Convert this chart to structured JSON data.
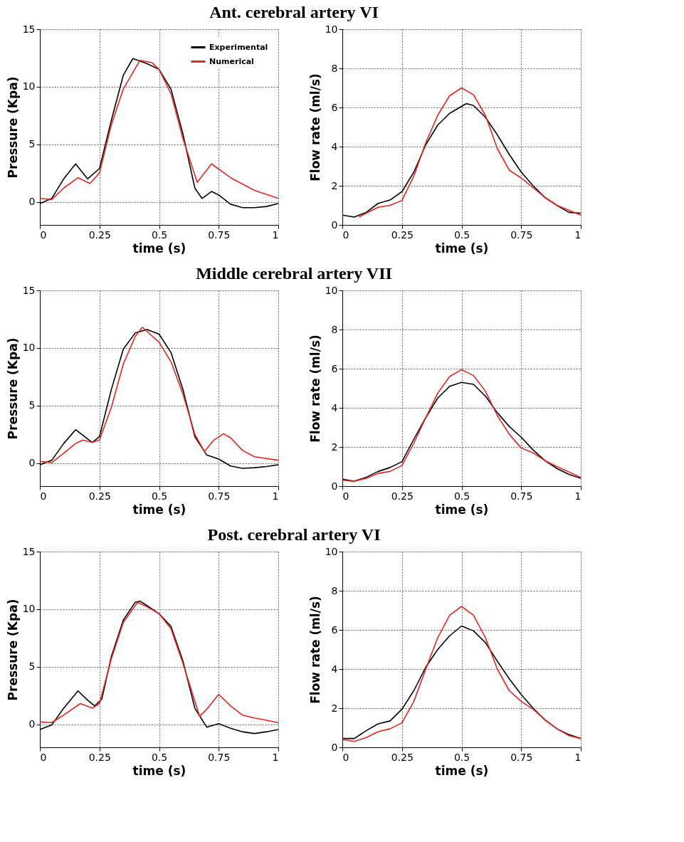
{
  "chart_data": [
    {
      "type": "line",
      "title": "Ant. cerebral artery VI",
      "xlabel": "time (s)",
      "ylabel": "Pressure (Kpa)",
      "xlim": [
        0,
        1
      ],
      "xticks": [
        0,
        0.25,
        0.5,
        0.75,
        1
      ],
      "ylim": [
        -2,
        15
      ],
      "yticks": [
        0,
        5,
        10,
        15
      ],
      "grid": true,
      "legend": "top right",
      "series": [
        {
          "name": "Experimental",
          "color": "#000000",
          "x": [
            0,
            0.05,
            0.1,
            0.15,
            0.2,
            0.25,
            0.3,
            0.35,
            0.39,
            0.45,
            0.5,
            0.55,
            0.6,
            0.65,
            0.68,
            0.72,
            0.75,
            0.8,
            0.85,
            0.9,
            0.95,
            1.0
          ],
          "values": [
            -0.15,
            0.3,
            2.0,
            3.3,
            2.0,
            2.9,
            7.1,
            11.0,
            12.45,
            12.0,
            11.5,
            9.8,
            5.9,
            1.2,
            0.3,
            0.9,
            0.6,
            -0.2,
            -0.5,
            -0.5,
            -0.4,
            -0.15
          ]
        },
        {
          "name": "Numerical",
          "color": "#e8261f",
          "x": [
            0,
            0.05,
            0.1,
            0.16,
            0.21,
            0.25,
            0.3,
            0.35,
            0.42,
            0.47,
            0.5,
            0.55,
            0.6,
            0.66,
            0.72,
            0.8,
            0.9,
            1.0
          ],
          "values": [
            0.3,
            0.2,
            1.2,
            2.1,
            1.6,
            2.5,
            6.7,
            9.8,
            12.3,
            12.1,
            11.5,
            9.4,
            5.5,
            1.7,
            3.3,
            2.1,
            1.0,
            0.3
          ]
        }
      ]
    },
    {
      "type": "line",
      "xlabel": "time (s)",
      "ylabel": "Flow rate (ml/s)",
      "xlim": [
        0,
        1
      ],
      "xticks": [
        0,
        0.25,
        0.5,
        0.75,
        1
      ],
      "ylim": [
        0,
        10
      ],
      "yticks": [
        0,
        2,
        4,
        6,
        8,
        10
      ],
      "grid": true,
      "series": [
        {
          "color": "#000000",
          "x": [
            0,
            0.05,
            0.1,
            0.15,
            0.2,
            0.25,
            0.3,
            0.35,
            0.4,
            0.45,
            0.52,
            0.55,
            0.6,
            0.65,
            0.7,
            0.75,
            0.8,
            0.85,
            0.9,
            0.95,
            1.0
          ],
          "values": [
            0.5,
            0.4,
            0.64,
            1.1,
            1.27,
            1.7,
            2.7,
            4.1,
            5.1,
            5.7,
            6.2,
            6.1,
            5.5,
            4.6,
            3.6,
            2.7,
            2.0,
            1.4,
            1.0,
            0.64,
            0.6
          ]
        },
        {
          "color": "#e8261f",
          "x": [
            0.07,
            0.1,
            0.15,
            0.2,
            0.25,
            0.3,
            0.35,
            0.4,
            0.45,
            0.5,
            0.55,
            0.6,
            0.65,
            0.7,
            0.75,
            0.8,
            0.85,
            0.9,
            1.0
          ],
          "values": [
            0.4,
            0.6,
            0.9,
            1.0,
            1.25,
            2.5,
            4.2,
            5.6,
            6.6,
            7.0,
            6.65,
            5.6,
            3.9,
            2.8,
            2.4,
            1.9,
            1.4,
            1.0,
            0.5
          ]
        }
      ]
    },
    {
      "type": "line",
      "title": "Middle cerebral artery VII",
      "xlabel": "time (s)",
      "ylabel": "Pressure (Kpa)",
      "xlim": [
        0,
        1
      ],
      "xticks": [
        0,
        0.25,
        0.5,
        0.75,
        1
      ],
      "ylim": [
        -2,
        15
      ],
      "yticks": [
        0,
        5,
        10,
        15
      ],
      "grid": true,
      "series": [
        {
          "color": "#000000",
          "x": [
            0,
            0.05,
            0.1,
            0.15,
            0.2,
            0.22,
            0.25,
            0.3,
            0.35,
            0.4,
            0.45,
            0.5,
            0.55,
            0.6,
            0.65,
            0.7,
            0.75,
            0.8,
            0.85,
            0.9,
            0.95,
            1.0
          ],
          "values": [
            -0.15,
            0.25,
            1.7,
            2.9,
            2.1,
            1.8,
            2.3,
            6.4,
            9.9,
            11.3,
            11.6,
            11.2,
            9.6,
            6.4,
            2.3,
            0.7,
            0.35,
            -0.25,
            -0.45,
            -0.4,
            -0.3,
            -0.15
          ]
        },
        {
          "color": "#e8261f",
          "x": [
            0,
            0.05,
            0.1,
            0.15,
            0.18,
            0.22,
            0.25,
            0.3,
            0.35,
            0.4,
            0.43,
            0.5,
            0.55,
            0.6,
            0.65,
            0.69,
            0.73,
            0.77,
            0.8,
            0.85,
            0.9,
            1.0
          ],
          "values": [
            0.15,
            0.05,
            0.85,
            1.7,
            2.0,
            1.8,
            2.0,
            4.85,
            8.6,
            11.0,
            11.8,
            10.5,
            8.8,
            6.0,
            2.5,
            1.0,
            2.0,
            2.55,
            2.2,
            1.1,
            0.55,
            0.25
          ]
        }
      ]
    },
    {
      "type": "line",
      "xlabel": "time (s)",
      "ylabel": "Flow rate (ml/s)",
      "xlim": [
        0,
        1
      ],
      "xticks": [
        0,
        0.25,
        0.5,
        0.75,
        1
      ],
      "ylim": [
        0,
        10
      ],
      "yticks": [
        0,
        2,
        4,
        6,
        8,
        10
      ],
      "grid": true,
      "series": [
        {
          "color": "#000000",
          "x": [
            0,
            0.05,
            0.1,
            0.15,
            0.2,
            0.25,
            0.3,
            0.35,
            0.4,
            0.45,
            0.5,
            0.55,
            0.6,
            0.65,
            0.7,
            0.75,
            0.8,
            0.85,
            0.9,
            0.95,
            1.0
          ],
          "values": [
            0.35,
            0.25,
            0.45,
            0.75,
            0.95,
            1.25,
            2.4,
            3.5,
            4.5,
            5.1,
            5.3,
            5.2,
            4.6,
            3.75,
            3.05,
            2.5,
            1.85,
            1.3,
            0.9,
            0.6,
            0.4
          ]
        },
        {
          "color": "#e8261f",
          "x": [
            0,
            0.05,
            0.1,
            0.15,
            0.2,
            0.25,
            0.3,
            0.35,
            0.4,
            0.45,
            0.5,
            0.55,
            0.6,
            0.65,
            0.7,
            0.75,
            0.8,
            0.85,
            0.9,
            1.0
          ],
          "values": [
            0.3,
            0.25,
            0.4,
            0.65,
            0.75,
            1.05,
            2.2,
            3.5,
            4.75,
            5.6,
            5.95,
            5.65,
            4.85,
            3.6,
            2.65,
            1.95,
            1.7,
            1.3,
            1.0,
            0.45
          ]
        }
      ]
    },
    {
      "type": "line",
      "title": "Post. cerebral artery VI",
      "xlabel": "time (s)",
      "ylabel": "Pressure (Kpa)",
      "xlim": [
        0,
        1
      ],
      "xticks": [
        0,
        0.25,
        0.5,
        0.75,
        1
      ],
      "ylim": [
        -2,
        15
      ],
      "yticks": [
        0,
        5,
        10,
        15
      ],
      "grid": true,
      "series": [
        {
          "color": "#000000",
          "x": [
            0,
            0.05,
            0.1,
            0.16,
            0.2,
            0.23,
            0.26,
            0.3,
            0.35,
            0.4,
            0.42,
            0.45,
            0.5,
            0.55,
            0.6,
            0.65,
            0.7,
            0.75,
            0.8,
            0.85,
            0.9,
            0.95,
            1.0
          ],
          "values": [
            -0.45,
            -0.05,
            1.4,
            2.9,
            2.1,
            1.6,
            2.2,
            5.9,
            9.05,
            10.6,
            10.7,
            10.3,
            9.6,
            8.5,
            5.5,
            1.4,
            -0.25,
            0.05,
            -0.35,
            -0.65,
            -0.8,
            -0.65,
            -0.45
          ]
        },
        {
          "color": "#e8261f",
          "x": [
            0,
            0.05,
            0.1,
            0.17,
            0.22,
            0.25,
            0.3,
            0.35,
            0.41,
            0.45,
            0.5,
            0.55,
            0.6,
            0.67,
            0.7,
            0.75,
            0.8,
            0.85,
            0.9,
            0.95,
            1.0
          ],
          "values": [
            0.2,
            0.15,
            0.8,
            1.8,
            1.4,
            1.8,
            5.7,
            8.85,
            10.6,
            10.2,
            9.6,
            8.3,
            5.3,
            0.7,
            1.3,
            2.6,
            1.6,
            0.8,
            0.55,
            0.35,
            0.15
          ]
        }
      ]
    },
    {
      "type": "line",
      "xlabel": "time (s)",
      "ylabel": "Flow rate (ml/s)",
      "xlim": [
        0,
        1
      ],
      "xticks": [
        0,
        0.25,
        0.5,
        0.75,
        1
      ],
      "ylim": [
        0,
        10
      ],
      "yticks": [
        0,
        2,
        4,
        6,
        8,
        10
      ],
      "grid": true,
      "series": [
        {
          "color": "#000000",
          "x": [
            0,
            0.05,
            0.1,
            0.15,
            0.2,
            0.25,
            0.3,
            0.35,
            0.4,
            0.45,
            0.5,
            0.55,
            0.6,
            0.65,
            0.7,
            0.75,
            0.8,
            0.85,
            0.9,
            0.95,
            1.0
          ],
          "values": [
            0.45,
            0.45,
            0.85,
            1.2,
            1.35,
            1.95,
            2.9,
            4.1,
            5.0,
            5.7,
            6.2,
            5.95,
            5.35,
            4.4,
            3.5,
            2.7,
            2.0,
            1.4,
            0.95,
            0.65,
            0.45
          ]
        },
        {
          "color": "#e8261f",
          "x": [
            0,
            0.05,
            0.1,
            0.15,
            0.2,
            0.25,
            0.3,
            0.35,
            0.4,
            0.45,
            0.5,
            0.55,
            0.6,
            0.65,
            0.7,
            0.75,
            0.8,
            0.85,
            0.9,
            0.95,
            1.0
          ],
          "values": [
            0.4,
            0.3,
            0.5,
            0.8,
            0.95,
            1.25,
            2.35,
            4.0,
            5.6,
            6.75,
            7.2,
            6.75,
            5.6,
            4.0,
            2.9,
            2.35,
            1.95,
            1.4,
            0.95,
            0.6,
            0.45
          ]
        }
      ]
    }
  ]
}
